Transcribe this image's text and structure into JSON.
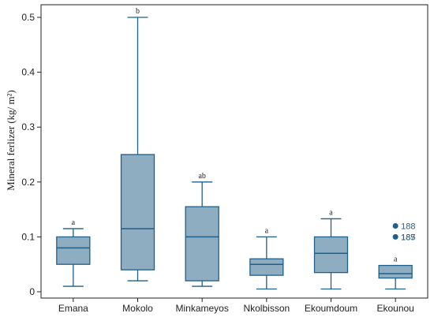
{
  "chart_data": {
    "type": "box",
    "ylabel": "Mineral ferlizer (kg/ m²)",
    "ylim": [
      0,
      0.5
    ],
    "yticks": [
      0,
      0.1,
      0.2,
      0.3,
      0.4,
      0.5
    ],
    "ytick_labels": [
      "0",
      "0.1",
      "0.2",
      "0.3",
      "0.4",
      "0.5"
    ],
    "grid": false,
    "colors": {
      "box_fill": "#8fadc1",
      "line": "#1f5f8b",
      "axis": "#222222"
    },
    "categories": [
      "Emana",
      "Mokolo",
      "Minkameyos",
      "Nkolbisson",
      "Ekoumdoum",
      "Ekounou"
    ],
    "boxes": [
      {
        "name": "Emana",
        "min": 0.01,
        "q1": 0.05,
        "median": 0.08,
        "q3": 0.1,
        "max": 0.115,
        "letter": "a",
        "outliers": []
      },
      {
        "name": "Mokolo",
        "min": 0.02,
        "q1": 0.04,
        "median": 0.115,
        "q3": 0.25,
        "max": 0.5,
        "letter": "b",
        "outliers": []
      },
      {
        "name": "Minkameyos",
        "min": 0.01,
        "q1": 0.02,
        "median": 0.1,
        "q3": 0.155,
        "max": 0.2,
        "letter": "ab",
        "outliers": []
      },
      {
        "name": "Nkolbisson",
        "min": 0.005,
        "q1": 0.03,
        "median": 0.05,
        "q3": 0.06,
        "max": 0.1,
        "letter": "a",
        "outliers": []
      },
      {
        "name": "Ekoumdoum",
        "min": 0.005,
        "q1": 0.035,
        "median": 0.07,
        "q3": 0.1,
        "max": 0.133,
        "letter": "a",
        "outliers": []
      },
      {
        "name": "Ekounou",
        "min": 0.005,
        "q1": 0.025,
        "median": 0.033,
        "q3": 0.048,
        "max": 0.048,
        "letter": "a",
        "outliers": [
          {
            "value": 0.12,
            "label": "188"
          },
          {
            "value": 0.1,
            "label": "187"
          },
          {
            "value": 0.1,
            "label": "185"
          }
        ]
      }
    ]
  }
}
